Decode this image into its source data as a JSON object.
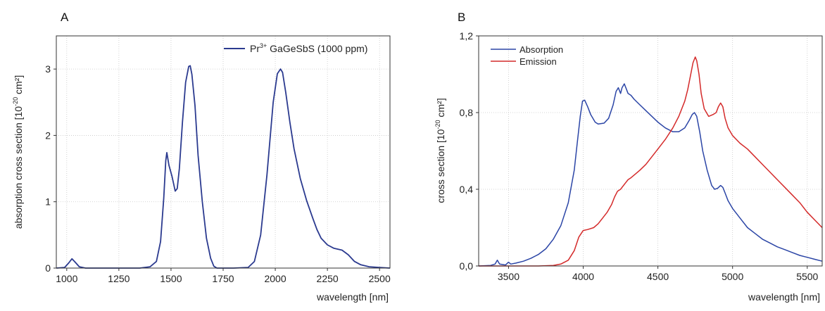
{
  "chart_data": [
    {
      "panel_label": "A",
      "type": "line",
      "xlabel": "wavelength [nm]",
      "ylabel": "absorption cross section [10",
      "ylabel_sup": "-20",
      "ylabel_unit": " cm²]",
      "xlim": [
        950,
        2550
      ],
      "ylim": [
        0,
        3.5
      ],
      "xticks": [
        1000,
        1250,
        1500,
        1750,
        2000,
        2250,
        2500
      ],
      "yticks": [
        0,
        1,
        2,
        3
      ],
      "grid": true,
      "legend_placement": "top-right",
      "series": [
        {
          "name": "Pr",
          "name_sup": "3+",
          "name_rest": " GaGeSbS (1000 ppm)",
          "color": "#2b3a8f",
          "x": [
            950,
            990,
            1010,
            1025,
            1040,
            1060,
            1090,
            1200,
            1350,
            1400,
            1430,
            1450,
            1465,
            1475,
            1480,
            1490,
            1505,
            1520,
            1530,
            1540,
            1555,
            1570,
            1585,
            1592,
            1600,
            1615,
            1630,
            1650,
            1670,
            1690,
            1705,
            1720,
            1740,
            1800,
            1870,
            1900,
            1930,
            1960,
            1990,
            2010,
            2025,
            2035,
            2050,
            2070,
            2090,
            2120,
            2150,
            2180,
            2200,
            2220,
            2250,
            2280,
            2320,
            2350,
            2380,
            2410,
            2450,
            2500,
            2550
          ],
          "y": [
            0.0,
            0.01,
            0.08,
            0.14,
            0.09,
            0.02,
            0.0,
            0.0,
            0.0,
            0.02,
            0.1,
            0.4,
            1.05,
            1.62,
            1.74,
            1.55,
            1.38,
            1.16,
            1.2,
            1.5,
            2.2,
            2.8,
            3.04,
            3.05,
            2.92,
            2.45,
            1.7,
            1.0,
            0.45,
            0.15,
            0.03,
            0.0,
            0.0,
            0.0,
            0.01,
            0.1,
            0.5,
            1.4,
            2.5,
            2.93,
            3.0,
            2.95,
            2.65,
            2.2,
            1.8,
            1.35,
            1.02,
            0.75,
            0.58,
            0.45,
            0.35,
            0.3,
            0.27,
            0.2,
            0.1,
            0.05,
            0.02,
            0.01,
            0.0
          ]
        }
      ]
    },
    {
      "panel_label": "B",
      "type": "line",
      "xlabel": "wavelength [nm]",
      "ylabel": "cross section [10",
      "ylabel_sup": "-20",
      "ylabel_unit": " cm²]",
      "xlim": [
        3300,
        5600
      ],
      "ylim": [
        0.0,
        1.2
      ],
      "xticks": [
        3500,
        4000,
        4500,
        5000,
        5500
      ],
      "yticks": [
        0.0,
        0.4,
        0.8,
        1.2
      ],
      "ytick_labels": [
        "0,0",
        "0,4",
        "0,8",
        "1,2"
      ],
      "grid": true,
      "legend_placement": "top-left",
      "series": [
        {
          "name": "Absorption",
          "color": "#2b45a6",
          "x": [
            3300,
            3380,
            3410,
            3425,
            3440,
            3480,
            3500,
            3515,
            3550,
            3600,
            3650,
            3700,
            3750,
            3800,
            3850,
            3900,
            3940,
            3960,
            3980,
            3995,
            4010,
            4030,
            4050,
            4080,
            4100,
            4140,
            4170,
            4200,
            4220,
            4235,
            4250,
            4260,
            4275,
            4290,
            4300,
            4320,
            4340,
            4380,
            4420,
            4460,
            4500,
            4550,
            4600,
            4640,
            4680,
            4710,
            4730,
            4745,
            4760,
            4780,
            4800,
            4830,
            4860,
            4880,
            4900,
            4920,
            4935,
            4950,
            4970,
            5000,
            5050,
            5100,
            5150,
            5200,
            5250,
            5300,
            5350,
            5400,
            5450,
            5500,
            5550,
            5600
          ],
          "y": [
            0.0,
            0.003,
            0.01,
            0.03,
            0.01,
            0.005,
            0.02,
            0.01,
            0.015,
            0.025,
            0.04,
            0.06,
            0.09,
            0.14,
            0.21,
            0.33,
            0.5,
            0.64,
            0.78,
            0.86,
            0.865,
            0.83,
            0.79,
            0.75,
            0.74,
            0.745,
            0.77,
            0.84,
            0.91,
            0.93,
            0.9,
            0.93,
            0.95,
            0.92,
            0.9,
            0.89,
            0.87,
            0.84,
            0.81,
            0.78,
            0.75,
            0.72,
            0.7,
            0.7,
            0.72,
            0.76,
            0.79,
            0.8,
            0.78,
            0.7,
            0.6,
            0.5,
            0.42,
            0.4,
            0.405,
            0.42,
            0.41,
            0.38,
            0.34,
            0.3,
            0.25,
            0.2,
            0.17,
            0.14,
            0.12,
            0.1,
            0.085,
            0.07,
            0.055,
            0.045,
            0.035,
            0.025
          ]
        },
        {
          "name": "Emission",
          "color": "#d42a2a",
          "x": [
            3300,
            3500,
            3700,
            3800,
            3850,
            3900,
            3940,
            3970,
            4000,
            4030,
            4070,
            4100,
            4130,
            4160,
            4190,
            4210,
            4230,
            4250,
            4280,
            4300,
            4320,
            4350,
            4380,
            4420,
            4460,
            4500,
            4550,
            4600,
            4640,
            4680,
            4700,
            4720,
            4735,
            4750,
            4760,
            4775,
            4790,
            4810,
            4840,
            4870,
            4890,
            4905,
            4920,
            4935,
            4950,
            4970,
            5000,
            5050,
            5100,
            5150,
            5200,
            5250,
            5300,
            5350,
            5400,
            5450,
            5500,
            5550,
            5600
          ],
          "y": [
            0.0,
            0.0,
            0.0,
            0.003,
            0.01,
            0.03,
            0.08,
            0.15,
            0.185,
            0.19,
            0.2,
            0.22,
            0.25,
            0.28,
            0.32,
            0.36,
            0.39,
            0.4,
            0.43,
            0.45,
            0.46,
            0.48,
            0.5,
            0.53,
            0.57,
            0.61,
            0.66,
            0.72,
            0.78,
            0.86,
            0.92,
            1.0,
            1.06,
            1.09,
            1.07,
            1.0,
            0.9,
            0.82,
            0.78,
            0.79,
            0.8,
            0.83,
            0.85,
            0.83,
            0.77,
            0.72,
            0.68,
            0.64,
            0.61,
            0.57,
            0.53,
            0.49,
            0.45,
            0.41,
            0.37,
            0.33,
            0.28,
            0.24,
            0.2
          ]
        }
      ]
    }
  ]
}
